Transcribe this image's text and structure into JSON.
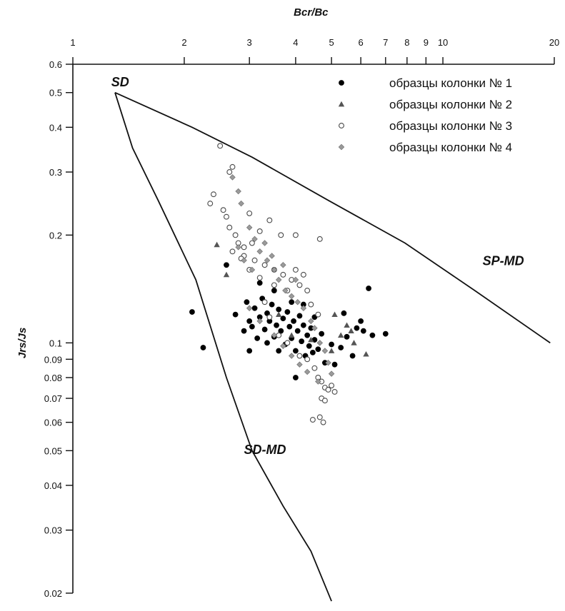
{
  "chart_data": {
    "type": "scatter",
    "x_axis": {
      "label": "Bcr/Bc",
      "scale": "log",
      "range": [
        1,
        20
      ],
      "position": "top",
      "ticks": [
        1,
        2,
        3,
        4,
        5,
        6,
        7,
        8,
        9,
        10,
        20
      ],
      "tick_labels": [
        "1",
        "2",
        "3",
        "4",
        "5",
        "6",
        "7",
        "8",
        "9",
        "10",
        "20"
      ]
    },
    "y_axis": {
      "label": "Jrs/Js",
      "scale": "log",
      "range": [
        0.02,
        0.6
      ],
      "ticks": [
        0.6,
        0.5,
        0.4,
        0.3,
        0.2,
        0.1,
        0.09,
        0.08,
        0.07,
        0.06,
        0.05,
        0.04,
        0.03,
        0.02
      ],
      "tick_labels": [
        "0.6",
        "0.5",
        "0.4",
        "0.3",
        "0.2",
        "0.1",
        "0.09",
        "0.08",
        "0.07",
        "0.06",
        "0.05",
        "0.04",
        "0.03",
        "0.02"
      ]
    },
    "grid": false,
    "legend": {
      "position": "top-right",
      "entries": [
        {
          "label": "образцы колонки № 1",
          "marker": "filled-circle",
          "color": "#000000"
        },
        {
          "label": "образцы колонки № 2",
          "marker": "triangle",
          "color": "#555555"
        },
        {
          "label": "образцы колонки № 3",
          "marker": "open-circle",
          "color": "#555555"
        },
        {
          "label": "образцы колонки № 4",
          "marker": "diamond",
          "color": "#8a8a8a"
        }
      ]
    },
    "region_labels": [
      {
        "text": "SD",
        "x": 1.27,
        "y": 0.52
      },
      {
        "text": "SP-MD",
        "x": 12.8,
        "y": 0.165
      },
      {
        "text": "SD-MD",
        "x": 2.9,
        "y": 0.049
      }
    ],
    "boundaries": [
      {
        "name": "SD-SP-MD",
        "points": [
          [
            1.3,
            0.5
          ],
          [
            2.1,
            0.4
          ],
          [
            3.05,
            0.33
          ],
          [
            4.9,
            0.25
          ],
          [
            7.9,
            0.19
          ],
          [
            12.2,
            0.14
          ],
          [
            19.5,
            0.1
          ]
        ]
      },
      {
        "name": "SD-SP-MD",
        "points": [
          [
            1.3,
            0.5
          ],
          [
            1.45,
            0.35
          ],
          [
            1.7,
            0.25
          ],
          [
            2.15,
            0.15
          ],
          [
            2.6,
            0.08
          ],
          [
            3.05,
            0.05
          ],
          [
            3.7,
            0.035
          ],
          [
            4.4,
            0.0262
          ],
          [
            5.0,
            0.019
          ]
        ]
      }
    ],
    "series": [
      {
        "name": "образцы колонки № 1",
        "marker": "filled-circle",
        "points": [
          [
            2.1,
            0.122
          ],
          [
            2.25,
            0.097
          ],
          [
            2.6,
            0.165
          ],
          [
            2.75,
            0.12
          ],
          [
            2.9,
            0.108
          ],
          [
            2.95,
            0.13
          ],
          [
            3.0,
            0.115
          ],
          [
            3.05,
            0.111
          ],
          [
            3.1,
            0.125
          ],
          [
            3.15,
            0.103
          ],
          [
            3.2,
            0.118
          ],
          [
            3.25,
            0.133
          ],
          [
            3.3,
            0.109
          ],
          [
            3.35,
            0.121
          ],
          [
            3.4,
            0.115
          ],
          [
            3.45,
            0.128
          ],
          [
            3.5,
            0.104
          ],
          [
            3.55,
            0.112
          ],
          [
            3.6,
            0.124
          ],
          [
            3.65,
            0.108
          ],
          [
            3.7,
            0.117
          ],
          [
            3.75,
            0.099
          ],
          [
            3.8,
            0.122
          ],
          [
            3.85,
            0.111
          ],
          [
            3.9,
            0.103
          ],
          [
            3.95,
            0.115
          ],
          [
            4.0,
            0.095
          ],
          [
            4.05,
            0.108
          ],
          [
            4.1,
            0.119
          ],
          [
            4.15,
            0.101
          ],
          [
            4.2,
            0.112
          ],
          [
            4.25,
            0.092
          ],
          [
            4.3,
            0.105
          ],
          [
            4.35,
            0.098
          ],
          [
            4.4,
            0.11
          ],
          [
            4.45,
            0.094
          ],
          [
            4.5,
            0.102
          ],
          [
            4.6,
            0.096
          ],
          [
            4.7,
            0.106
          ],
          [
            4.8,
            0.088
          ],
          [
            5.0,
            0.099
          ],
          [
            5.1,
            0.087
          ],
          [
            5.3,
            0.097
          ],
          [
            5.5,
            0.104
          ],
          [
            5.7,
            0.092
          ],
          [
            5.85,
            0.11
          ],
          [
            6.0,
            0.115
          ],
          [
            6.1,
            0.108
          ],
          [
            6.3,
            0.142
          ],
          [
            6.45,
            0.105
          ],
          [
            7.0,
            0.106
          ],
          [
            5.4,
            0.121
          ],
          [
            3.2,
            0.147
          ],
          [
            3.5,
            0.14
          ],
          [
            4.0,
            0.08
          ],
          [
            3.0,
            0.095
          ],
          [
            3.35,
            0.1
          ],
          [
            3.6,
            0.095
          ],
          [
            3.9,
            0.13
          ],
          [
            4.2,
            0.128
          ],
          [
            4.5,
            0.118
          ]
        ]
      },
      {
        "name": "образцы колонки № 2",
        "marker": "triangle",
        "points": [
          [
            2.45,
            0.188
          ],
          [
            2.6,
            0.155
          ],
          [
            5.1,
            0.12
          ],
          [
            5.3,
            0.105
          ],
          [
            5.5,
            0.112
          ],
          [
            5.65,
            0.108
          ],
          [
            5.75,
            0.1
          ],
          [
            6.2,
            0.093
          ],
          [
            5.0,
            0.095
          ],
          [
            4.4,
            0.102
          ],
          [
            3.6,
            0.12
          ],
          [
            3.9,
            0.105
          ]
        ]
      },
      {
        "name": "образцы колонки № 3",
        "marker": "open-circle",
        "points": [
          [
            2.5,
            0.355
          ],
          [
            2.65,
            0.3
          ],
          [
            2.7,
            0.31
          ],
          [
            2.4,
            0.26
          ],
          [
            2.35,
            0.245
          ],
          [
            2.55,
            0.235
          ],
          [
            2.6,
            0.225
          ],
          [
            2.65,
            0.21
          ],
          [
            2.75,
            0.2
          ],
          [
            2.8,
            0.19
          ],
          [
            2.9,
            0.185
          ],
          [
            3.0,
            0.23
          ],
          [
            3.2,
            0.205
          ],
          [
            3.4,
            0.22
          ],
          [
            3.65,
            0.2
          ],
          [
            4.0,
            0.2
          ],
          [
            4.65,
            0.195
          ],
          [
            2.7,
            0.18
          ],
          [
            2.9,
            0.175
          ],
          [
            3.1,
            0.17
          ],
          [
            3.3,
            0.165
          ],
          [
            3.5,
            0.16
          ],
          [
            3.7,
            0.155
          ],
          [
            3.9,
            0.15
          ],
          [
            4.1,
            0.145
          ],
          [
            4.3,
            0.14
          ],
          [
            3.0,
            0.16
          ],
          [
            3.2,
            0.152
          ],
          [
            3.5,
            0.145
          ],
          [
            3.8,
            0.14
          ],
          [
            4.0,
            0.16
          ],
          [
            4.2,
            0.155
          ],
          [
            4.4,
            0.128
          ],
          [
            4.6,
            0.12
          ],
          [
            4.5,
            0.085
          ],
          [
            4.6,
            0.08
          ],
          [
            4.7,
            0.078
          ],
          [
            4.8,
            0.075
          ],
          [
            4.9,
            0.074
          ],
          [
            5.0,
            0.076
          ],
          [
            5.1,
            0.073
          ],
          [
            4.7,
            0.07
          ],
          [
            4.8,
            0.069
          ],
          [
            4.45,
            0.061
          ],
          [
            4.65,
            0.062
          ],
          [
            4.75,
            0.06
          ],
          [
            4.3,
            0.09
          ],
          [
            4.1,
            0.092
          ],
          [
            3.8,
            0.1
          ],
          [
            3.6,
            0.105
          ],
          [
            3.4,
            0.118
          ],
          [
            3.3,
            0.13
          ],
          [
            2.85,
            0.172
          ],
          [
            3.05,
            0.19
          ]
        ]
      },
      {
        "name": "образцы колонки № 4",
        "marker": "diamond",
        "points": [
          [
            2.7,
            0.29
          ],
          [
            2.8,
            0.265
          ],
          [
            2.85,
            0.245
          ],
          [
            3.0,
            0.21
          ],
          [
            3.1,
            0.195
          ],
          [
            3.2,
            0.18
          ],
          [
            3.35,
            0.17
          ],
          [
            3.5,
            0.16
          ],
          [
            3.6,
            0.15
          ],
          [
            3.75,
            0.14
          ],
          [
            3.9,
            0.135
          ],
          [
            4.05,
            0.13
          ],
          [
            4.2,
            0.125
          ],
          [
            4.4,
            0.115
          ],
          [
            4.5,
            0.11
          ],
          [
            4.65,
            0.1
          ],
          [
            4.8,
            0.095
          ],
          [
            4.9,
            0.088
          ],
          [
            5.0,
            0.082
          ],
          [
            3.0,
            0.125
          ],
          [
            3.2,
            0.115
          ],
          [
            3.5,
            0.105
          ],
          [
            3.7,
            0.098
          ],
          [
            3.9,
            0.092
          ],
          [
            4.1,
            0.087
          ],
          [
            4.3,
            0.083
          ],
          [
            4.6,
            0.078
          ],
          [
            2.8,
            0.185
          ],
          [
            2.9,
            0.17
          ],
          [
            3.05,
            0.16
          ],
          [
            3.3,
            0.19
          ],
          [
            3.45,
            0.175
          ],
          [
            3.7,
            0.165
          ],
          [
            4.0,
            0.15
          ]
        ]
      }
    ]
  }
}
